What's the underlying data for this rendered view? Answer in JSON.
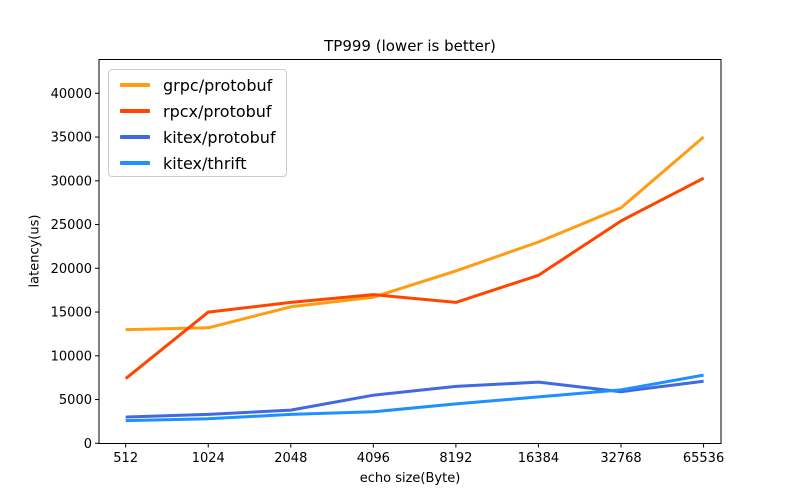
{
  "figure": {
    "background": "#ffffff",
    "axis_color": "#000000",
    "text_color": "#000000"
  },
  "chart_data": {
    "type": "line",
    "title": "TP999 (lower is better)",
    "xlabel": "echo size(Byte)",
    "ylabel": "latency(us)",
    "categories": [
      "512",
      "1024",
      "2048",
      "4096",
      "8192",
      "16384",
      "32768",
      "65536"
    ],
    "x_scale": "categorical (log2 spacing)",
    "y_ticks": [
      0,
      5000,
      10000,
      15000,
      20000,
      25000,
      30000,
      35000,
      40000
    ],
    "ylim": [
      0,
      43800
    ],
    "grid": false,
    "legend_position": "upper left",
    "series": [
      {
        "name": "grpc/protobuf",
        "color": "#ff9c14",
        "values": [
          13000,
          13200,
          15600,
          16700,
          19700,
          23000,
          26900,
          35000
        ]
      },
      {
        "name": "rpcx/protobuf",
        "color": "#ff4500",
        "values": [
          7400,
          15000,
          16100,
          17000,
          16100,
          19200,
          25400,
          30300
        ]
      },
      {
        "name": "kitex/protobuf",
        "color": "#4169e1",
        "values": [
          3000,
          3300,
          3800,
          5500,
          6500,
          7000,
          5900,
          7100
        ]
      },
      {
        "name": "kitex/thrift",
        "color": "#1e90ff",
        "values": [
          2600,
          2800,
          3300,
          3600,
          4500,
          5300,
          6100,
          7800
        ]
      }
    ]
  }
}
